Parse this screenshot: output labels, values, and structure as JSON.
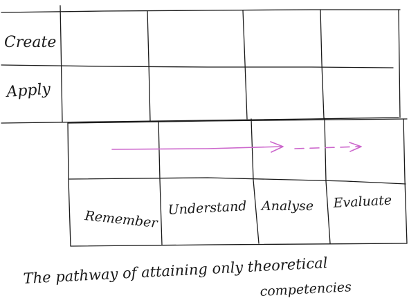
{
  "rows": {
    "top": "Create",
    "middle": "Apply"
  },
  "columns": [
    "Remember",
    "Understand",
    "Analyse",
    "Evaluate"
  ],
  "caption": {
    "line1": "The pathway of attaining only theoretical",
    "line2": "competencies"
  },
  "colors": {
    "ink": "#1a1a1a",
    "arrow": "#cc66cc",
    "background": "#ffffff"
  }
}
